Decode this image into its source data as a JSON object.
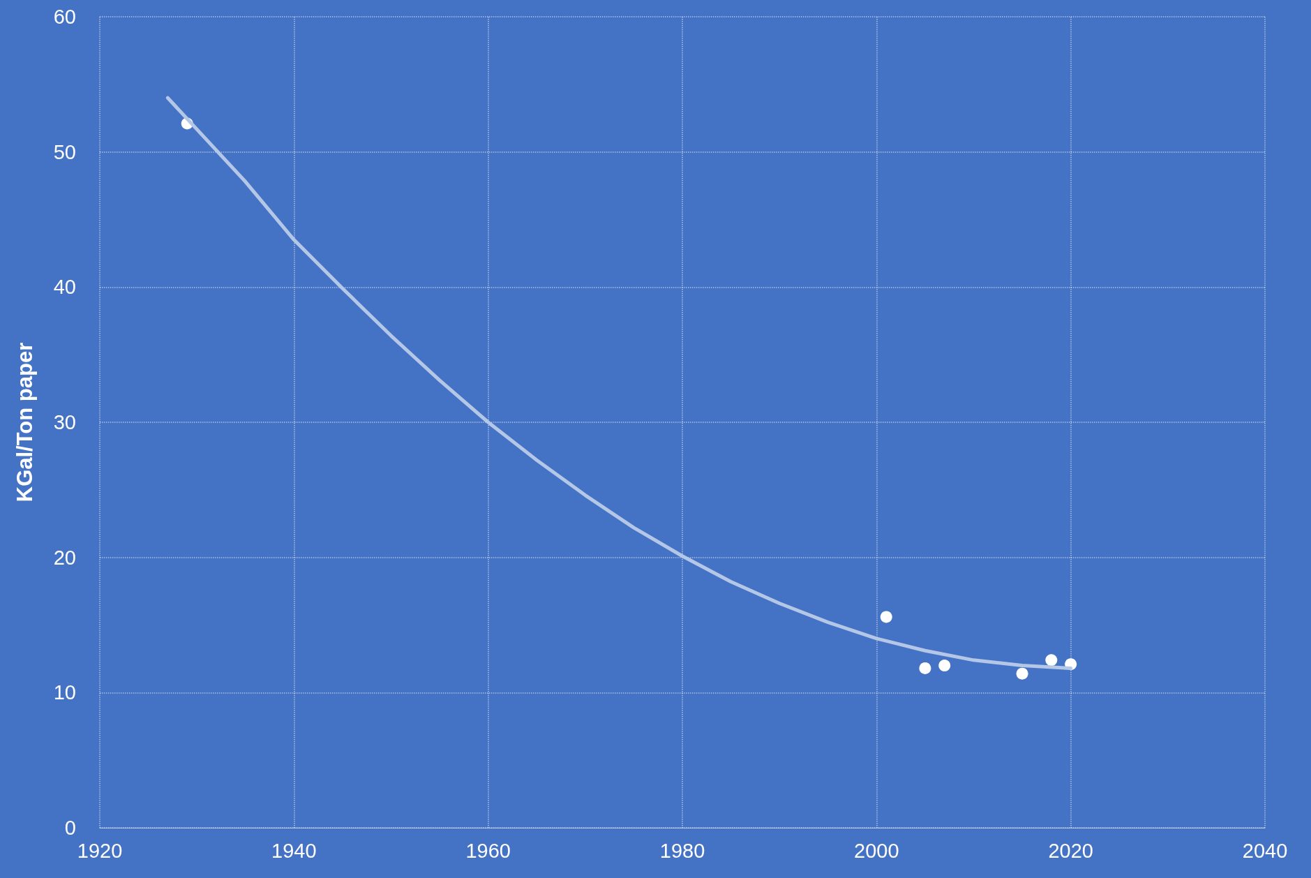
{
  "chart_data": {
    "type": "scatter",
    "ylabel": "KGal/Ton paper",
    "xlim": [
      1920,
      2040
    ],
    "xticks": [
      1920,
      1940,
      1960,
      1980,
      2000,
      2020,
      2040
    ],
    "ylim": [
      0,
      60
    ],
    "yticks": [
      0,
      10,
      20,
      30,
      40,
      50,
      60
    ],
    "grid": true,
    "series": [
      {
        "color": "#ffffff",
        "marker": "circle",
        "x": [
          1929,
          2001,
          2005,
          2007,
          2015,
          2018,
          2020
        ],
        "values": [
          52.1,
          15.6,
          11.8,
          12.0,
          11.4,
          12.4,
          12.1
        ]
      },
      {
        "type": "line",
        "color": "#b4c7e7",
        "marker": "none",
        "line_style": "solid",
        "x": [
          1927,
          1935,
          1940,
          1945,
          1950,
          1955,
          1960,
          1965,
          1970,
          1975,
          1980,
          1985,
          1990,
          1995,
          2000,
          2005,
          2010,
          2015,
          2020
        ],
        "values": [
          54.0,
          47.8,
          43.5,
          39.9,
          36.4,
          33.1,
          30.0,
          27.2,
          24.6,
          22.2,
          20.1,
          18.2,
          16.6,
          15.2,
          14.0,
          13.1,
          12.4,
          12.0,
          11.8
        ]
      }
    ]
  }
}
